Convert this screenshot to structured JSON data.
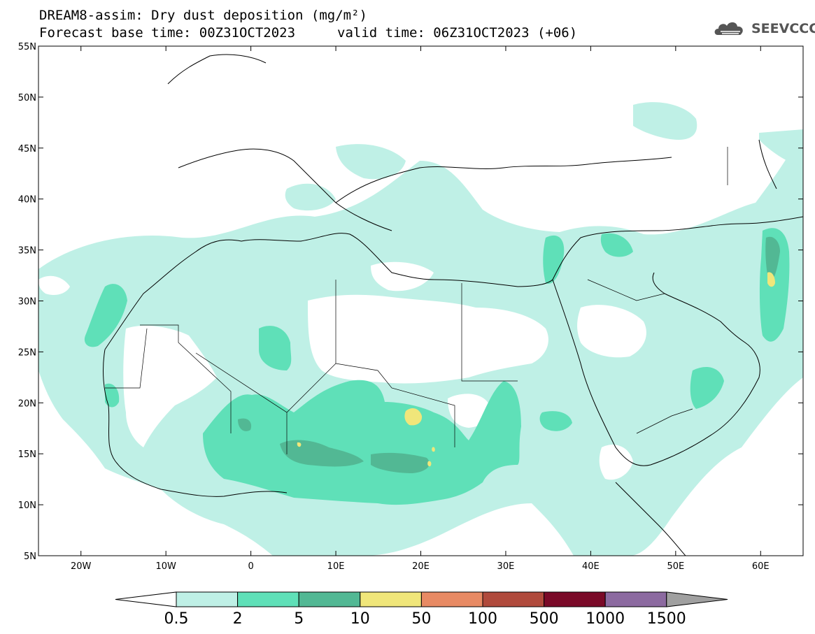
{
  "title": {
    "line1": "DREAM8-assim: Dry dust deposition (mg/m²)",
    "line2a": "Forecast base time: 00Z31OCT2023",
    "line2b": "valid time: 06Z31OCT2023 (+06)"
  },
  "logo": {
    "text": "SEEVCCC",
    "icon": "cloud-icon"
  },
  "map": {
    "lon_range": [
      -25,
      65
    ],
    "lat_range": [
      5,
      55
    ],
    "lat_ticks": [
      "5N",
      "10N",
      "15N",
      "20N",
      "25N",
      "30N",
      "35N",
      "40N",
      "45N",
      "50N",
      "55N"
    ],
    "lon_ticks": [
      "20W",
      "10W",
      "0",
      "10E",
      "20E",
      "30E",
      "40E",
      "50E",
      "60E"
    ]
  },
  "colorbar": {
    "labels": [
      "0.5",
      "2",
      "5",
      "10",
      "50",
      "100",
      "500",
      "1000",
      "1500"
    ],
    "colors": [
      "#bff0e6",
      "#5fe0b8",
      "#52b894",
      "#f0e67a",
      "#e88a64",
      "#b04a3c",
      "#7a0a28",
      "#8c6aa0"
    ],
    "under_color": "#ffffff",
    "over_color": "#a0a0a0"
  },
  "legend_colors": {
    "c1": "#bff0e6",
    "c2": "#5fe0b8",
    "c3": "#52b894",
    "c4": "#f0e67a"
  }
}
